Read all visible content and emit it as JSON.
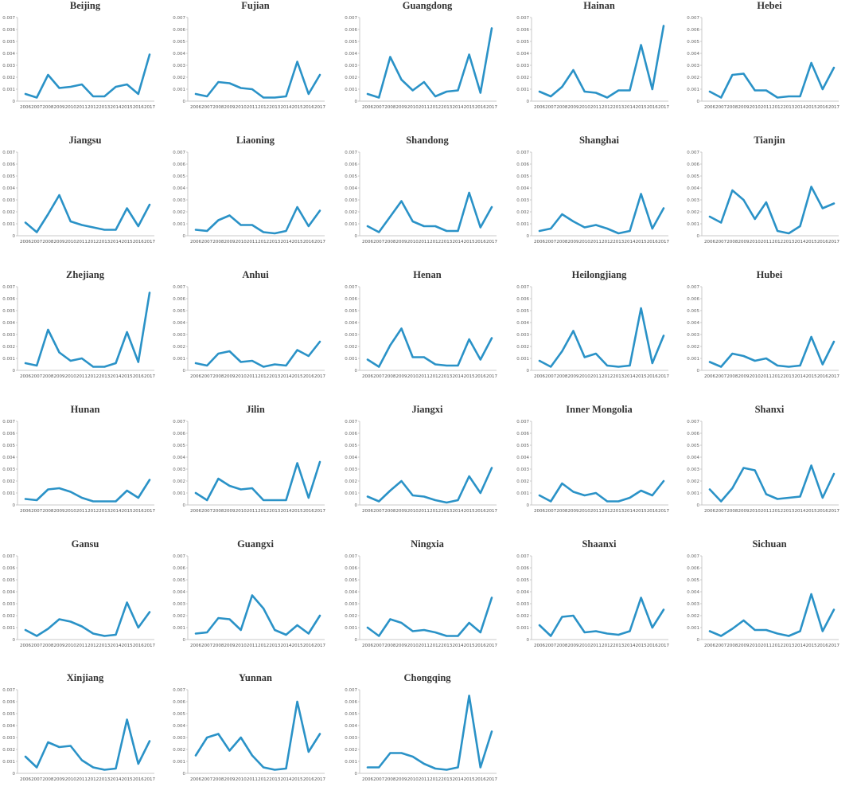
{
  "colors": {
    "line": "#2a92c7",
    "axis": "#c8c8c8",
    "text": "#333333"
  },
  "chart_data": {
    "type": "line",
    "x": [
      "2006",
      "2007",
      "2008",
      "2009",
      "2010",
      "2011",
      "2012",
      "2013",
      "2014",
      "2015",
      "2016",
      "2017"
    ],
    "ylim": [
      0,
      0.007
    ],
    "yticks": [
      "0",
      "0.001",
      "0.002",
      "0.003",
      "0.004",
      "0.005",
      "0.006",
      "0.007"
    ],
    "grid": false,
    "panels": [
      {
        "title": "Beijing",
        "values": [
          0.0006,
          0.0003,
          0.0022,
          0.0011,
          0.0012,
          0.0014,
          0.0004,
          0.0004,
          0.0012,
          0.0014,
          0.0006,
          0.0039
        ]
      },
      {
        "title": "Fujian",
        "values": [
          0.0006,
          0.0004,
          0.0016,
          0.0015,
          0.0011,
          0.001,
          0.0003,
          0.0003,
          0.0004,
          0.0033,
          0.0006,
          0.0022
        ]
      },
      {
        "title": "Guangdong",
        "values": [
          0.0006,
          0.0003,
          0.0037,
          0.0018,
          0.0009,
          0.0016,
          0.0004,
          0.0008,
          0.0009,
          0.0039,
          0.0007,
          0.0061
        ]
      },
      {
        "title": "Hainan",
        "values": [
          0.0008,
          0.0004,
          0.0012,
          0.0026,
          0.0008,
          0.0007,
          0.0003,
          0.0009,
          0.0009,
          0.0047,
          0.001,
          0.0063
        ]
      },
      {
        "title": "Hebei",
        "values": [
          0.0008,
          0.0003,
          0.0022,
          0.0023,
          0.0009,
          0.0009,
          0.0003,
          0.0004,
          0.0004,
          0.0032,
          0.001,
          0.0028
        ]
      },
      {
        "title": "Jiangsu",
        "values": [
          0.0011,
          0.0003,
          0.0018,
          0.0034,
          0.0012,
          0.0009,
          0.0007,
          0.0005,
          0.0005,
          0.0023,
          0.0008,
          0.0026
        ]
      },
      {
        "title": "Liaoning",
        "values": [
          0.0005,
          0.0004,
          0.0013,
          0.0017,
          0.0009,
          0.0009,
          0.0003,
          0.0002,
          0.0004,
          0.0024,
          0.0008,
          0.0021
        ]
      },
      {
        "title": "Shandong",
        "values": [
          0.0008,
          0.0003,
          0.0016,
          0.0029,
          0.0012,
          0.0008,
          0.0008,
          0.0004,
          0.0004,
          0.0036,
          0.0007,
          0.0024
        ]
      },
      {
        "title": "Shanghai",
        "values": [
          0.0004,
          0.0006,
          0.0018,
          0.0012,
          0.0007,
          0.0009,
          0.0006,
          0.0002,
          0.0004,
          0.0035,
          0.0006,
          0.0023
        ]
      },
      {
        "title": "Tianjin",
        "values": [
          0.0016,
          0.0011,
          0.0038,
          0.003,
          0.0014,
          0.0028,
          0.0004,
          0.0002,
          0.0008,
          0.0041,
          0.0023,
          0.0027
        ]
      },
      {
        "title": "Zhejiang",
        "values": [
          0.0006,
          0.0004,
          0.0034,
          0.0015,
          0.0008,
          0.001,
          0.0003,
          0.0003,
          0.0006,
          0.0032,
          0.0007,
          0.0065
        ]
      },
      {
        "title": "Anhui",
        "values": [
          0.0006,
          0.0004,
          0.0014,
          0.0016,
          0.0007,
          0.0008,
          0.0003,
          0.0005,
          0.0004,
          0.0017,
          0.0012,
          0.0024
        ]
      },
      {
        "title": "Henan",
        "values": [
          0.0009,
          0.0003,
          0.0021,
          0.0035,
          0.0011,
          0.0011,
          0.0005,
          0.0004,
          0.0004,
          0.0026,
          0.0009,
          0.0027
        ]
      },
      {
        "title": "Heilongjiang",
        "values": [
          0.0008,
          0.0003,
          0.0016,
          0.0033,
          0.0011,
          0.0014,
          0.0004,
          0.0003,
          0.0004,
          0.0052,
          0.0006,
          0.0029
        ]
      },
      {
        "title": "Hubei",
        "values": [
          0.0007,
          0.0003,
          0.0014,
          0.0012,
          0.0008,
          0.001,
          0.0004,
          0.0003,
          0.0004,
          0.0028,
          0.0005,
          0.0024
        ]
      },
      {
        "title": "Hunan",
        "values": [
          0.0005,
          0.0004,
          0.0013,
          0.0014,
          0.0011,
          0.0006,
          0.0003,
          0.0003,
          0.0003,
          0.0012,
          0.0006,
          0.0021
        ]
      },
      {
        "title": "Jilin",
        "values": [
          0.001,
          0.0004,
          0.0022,
          0.0016,
          0.0013,
          0.0014,
          0.0004,
          0.0004,
          0.0004,
          0.0035,
          0.0006,
          0.0036
        ]
      },
      {
        "title": "Jiangxi",
        "values": [
          0.0007,
          0.0003,
          0.0012,
          0.002,
          0.0008,
          0.0007,
          0.0004,
          0.0002,
          0.0004,
          0.0024,
          0.001,
          0.0031
        ]
      },
      {
        "title": "Inner Mongolia",
        "values": [
          0.0008,
          0.0003,
          0.0018,
          0.0011,
          0.0008,
          0.001,
          0.0003,
          0.0003,
          0.0006,
          0.0012,
          0.0008,
          0.002
        ]
      },
      {
        "title": "Shanxi",
        "values": [
          0.0013,
          0.0003,
          0.0014,
          0.0031,
          0.0029,
          0.0009,
          0.0005,
          0.0006,
          0.0007,
          0.0033,
          0.0006,
          0.0026
        ]
      },
      {
        "title": "Gansu",
        "values": [
          0.0008,
          0.0003,
          0.0009,
          0.0017,
          0.0015,
          0.0011,
          0.0005,
          0.0003,
          0.0004,
          0.0031,
          0.001,
          0.0023
        ]
      },
      {
        "title": "Guangxi",
        "values": [
          0.0005,
          0.0006,
          0.0018,
          0.0017,
          0.0008,
          0.0037,
          0.0026,
          0.0008,
          0.0004,
          0.0012,
          0.0005,
          0.002
        ]
      },
      {
        "title": "Ningxia",
        "values": [
          0.001,
          0.0003,
          0.0017,
          0.0014,
          0.0007,
          0.0008,
          0.0006,
          0.0003,
          0.0003,
          0.0014,
          0.0006,
          0.0035
        ]
      },
      {
        "title": "Shaanxi",
        "values": [
          0.0012,
          0.0003,
          0.0019,
          0.002,
          0.0006,
          0.0007,
          0.0005,
          0.0004,
          0.0007,
          0.0035,
          0.001,
          0.0025
        ]
      },
      {
        "title": "Sichuan",
        "values": [
          0.0007,
          0.0003,
          0.0009,
          0.0016,
          0.0008,
          0.0008,
          0.0005,
          0.0003,
          0.0007,
          0.0038,
          0.0007,
          0.0025
        ]
      },
      {
        "title": "Xinjiang",
        "values": [
          0.0014,
          0.0005,
          0.0026,
          0.0022,
          0.0023,
          0.0011,
          0.0005,
          0.0003,
          0.0004,
          0.0045,
          0.0008,
          0.0027
        ]
      },
      {
        "title": "Yunnan",
        "values": [
          0.0015,
          0.003,
          0.0033,
          0.0019,
          0.003,
          0.0015,
          0.0005,
          0.0003,
          0.0004,
          0.006,
          0.0018,
          0.0033
        ]
      },
      {
        "title": "Chongqing",
        "values": [
          0.0005,
          0.0005,
          0.0017,
          0.0017,
          0.0014,
          0.0008,
          0.0004,
          0.0003,
          0.0005,
          0.0065,
          0.0005,
          0.0035
        ]
      }
    ]
  }
}
